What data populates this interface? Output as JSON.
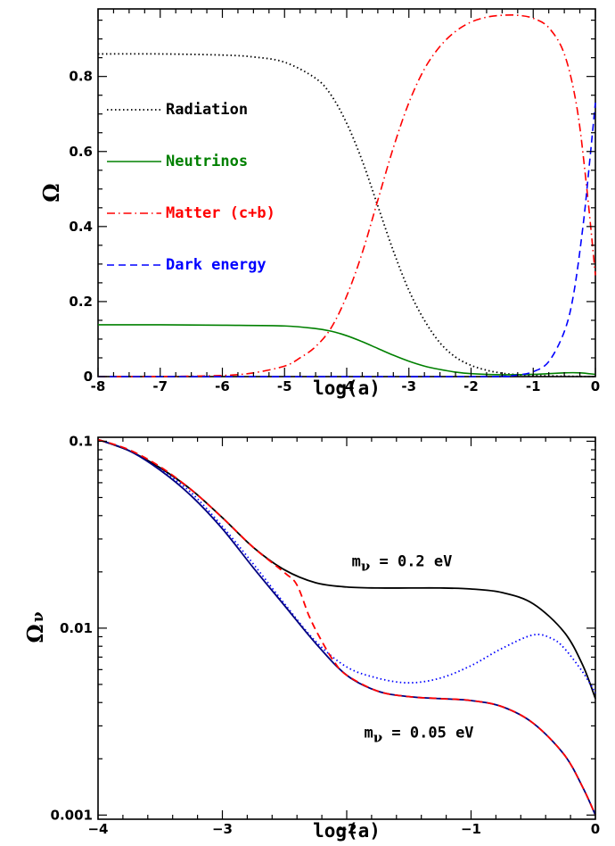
{
  "chart_data": [
    {
      "type": "line",
      "xlabel": "log(a)",
      "ylabel": "Ω",
      "xlim": [
        -8,
        0
      ],
      "ylim": [
        0,
        0.98
      ],
      "x_ticks": [
        "-8",
        "-7",
        "-6",
        "-5",
        "-4",
        "-3",
        "-2",
        "-1",
        "0"
      ],
      "y_ticks": [
        "0",
        "0.2",
        "0.4",
        "0.6",
        "0.8"
      ],
      "x_tick_values": [
        -8,
        -7,
        -6,
        -5,
        -4,
        -3,
        -2,
        -1,
        0
      ],
      "y_tick_values": [
        0,
        0.2,
        0.4,
        0.6,
        0.8
      ],
      "legend_position": "center-left",
      "series": [
        {
          "name": "Radiation",
          "color": "#000000",
          "style": "dotted",
          "x": [
            -8,
            -7,
            -6,
            -5.5,
            -5,
            -4.5,
            -4.25,
            -4,
            -3.75,
            -3.5,
            -3.25,
            -3,
            -2.75,
            -2.5,
            -2.25,
            -2,
            -1.75,
            -1.5,
            -1.25,
            -1,
            -0.5,
            0
          ],
          "y": [
            0.86,
            0.86,
            0.857,
            0.852,
            0.838,
            0.795,
            0.75,
            0.675,
            0.575,
            0.455,
            0.335,
            0.23,
            0.15,
            0.09,
            0.052,
            0.03,
            0.017,
            0.009,
            0.005,
            0.003,
            0.001,
            0.0001
          ]
        },
        {
          "name": "Neutrinos",
          "color": "#008000",
          "style": "solid",
          "x": [
            -8,
            -7,
            -6,
            -5,
            -4.5,
            -4.25,
            -4,
            -3.75,
            -3.5,
            -3.25,
            -3,
            -2.75,
            -2.5,
            -2.25,
            -2,
            -1.5,
            -1,
            -0.5,
            -0.25,
            0
          ],
          "y": [
            0.138,
            0.138,
            0.137,
            0.135,
            0.128,
            0.121,
            0.109,
            0.093,
            0.075,
            0.057,
            0.041,
            0.028,
            0.019,
            0.012,
            0.008,
            0.005,
            0.006,
            0.01,
            0.01,
            0.006
          ]
        },
        {
          "name": "Matter (c+b)",
          "color": "#ff0000",
          "style": "dashdot",
          "x": [
            -8,
            -7,
            -6,
            -5.5,
            -5,
            -4.75,
            -4.5,
            -4.25,
            -4,
            -3.75,
            -3.5,
            -3.25,
            -3,
            -2.75,
            -2.5,
            -2.25,
            -2,
            -1.75,
            -1.5,
            -1.25,
            -1,
            -0.75,
            -0.5,
            -0.3,
            -0.15,
            0
          ],
          "y": [
            0,
            0.0003,
            0.003,
            0.01,
            0.028,
            0.05,
            0.08,
            0.13,
            0.215,
            0.33,
            0.47,
            0.61,
            0.73,
            0.82,
            0.88,
            0.92,
            0.945,
            0.958,
            0.963,
            0.963,
            0.955,
            0.93,
            0.86,
            0.72,
            0.52,
            0.27
          ]
        },
        {
          "name": "Dark energy",
          "color": "#0000ff",
          "style": "dashed",
          "x": [
            -8,
            -2,
            -1.5,
            -1.25,
            -1,
            -0.75,
            -0.5,
            -0.35,
            -0.2,
            -0.1,
            0
          ],
          "y": [
            0,
            0,
            0.001,
            0.004,
            0.013,
            0.04,
            0.12,
            0.22,
            0.4,
            0.56,
            0.73
          ]
        }
      ]
    },
    {
      "type": "line",
      "xlabel": "log(a)",
      "ylabel": "Ω",
      "ylabel_subscript": "ν",
      "xlim": [
        -4,
        0
      ],
      "ylim": [
        0.00095,
        0.105
      ],
      "y_scale": "log",
      "x_ticks": [
        "−4",
        "−3",
        "−2",
        "−1",
        "0"
      ],
      "y_ticks": [
        "0.001",
        "0.01",
        "0.1"
      ],
      "x_tick_values": [
        -4,
        -3,
        -2,
        -1,
        0
      ],
      "y_tick_values": [
        0.001,
        0.01,
        0.1
      ],
      "annotations": [
        {
          "prefix": "m",
          "subscript": "ν",
          "suffix": " = 0.2 eV",
          "x": -1.96,
          "y": 0.0215
        },
        {
          "prefix": "m",
          "subscript": "ν",
          "suffix": " = 0.05 eV",
          "x": -1.86,
          "y": 0.0026
        }
      ],
      "series": [
        {
          "color": "#000000",
          "style": "solid",
          "x": [
            -4,
            -3.75,
            -3.5,
            -3.25,
            -3,
            -2.75,
            -2.5,
            -2.25,
            -2,
            -1.75,
            -1.5,
            -1.25,
            -1,
            -0.75,
            -0.5,
            -0.25,
            -0.1,
            0
          ],
          "y": [
            0.102,
            0.089,
            0.072,
            0.055,
            0.039,
            0.027,
            0.0205,
            0.0175,
            0.0166,
            0.0164,
            0.0164,
            0.0164,
            0.0162,
            0.0155,
            0.0135,
            0.0095,
            0.0063,
            0.0042
          ]
        },
        {
          "color": "#0000ff",
          "style": "dotted",
          "x": [
            -3.5,
            -3.25,
            -3,
            -2.75,
            -2.5,
            -2.25,
            -2,
            -1.75,
            -1.5,
            -1.25,
            -1,
            -0.75,
            -0.5,
            -0.35,
            -0.25,
            -0.1,
            0
          ],
          "y": [
            0.071,
            0.053,
            0.035,
            0.022,
            0.0135,
            0.0085,
            0.0062,
            0.0054,
            0.0051,
            0.0054,
            0.0063,
            0.0078,
            0.0092,
            0.0088,
            0.0078,
            0.0058,
            0.0045
          ]
        },
        {
          "color": "#000080",
          "style": "solid",
          "x": [
            -4,
            -3.75,
            -3.5,
            -3.25,
            -3,
            -2.75,
            -2.5,
            -2.25,
            -2,
            -1.75,
            -1.5,
            -1.25,
            -1,
            -0.75,
            -0.5,
            -0.25,
            -0.1,
            0
          ],
          "y": [
            0.102,
            0.089,
            0.07,
            0.051,
            0.034,
            0.021,
            0.0132,
            0.0083,
            0.0056,
            0.0046,
            0.0043,
            0.0042,
            0.0041,
            0.0038,
            0.0031,
            0.0021,
            0.0014,
            0.001
          ]
        },
        {
          "color": "#ff0000",
          "style": "dashed",
          "x": [
            -4,
            -3.75,
            -3.5,
            -3.25,
            -3,
            -2.75,
            -2.5,
            -2.4,
            -2.3,
            -2.2,
            -2.1,
            -2,
            -1.75,
            -1.5,
            -1.25,
            -1,
            -0.75,
            -0.5,
            -0.25,
            -0.1,
            0
          ],
          "y": [
            0.102,
            0.09,
            0.073,
            0.055,
            0.039,
            0.027,
            0.0198,
            0.017,
            0.0115,
            0.0085,
            0.0066,
            0.0056,
            0.0046,
            0.0043,
            0.0042,
            0.0041,
            0.0038,
            0.0031,
            0.0021,
            0.0014,
            0.001
          ]
        }
      ]
    }
  ]
}
